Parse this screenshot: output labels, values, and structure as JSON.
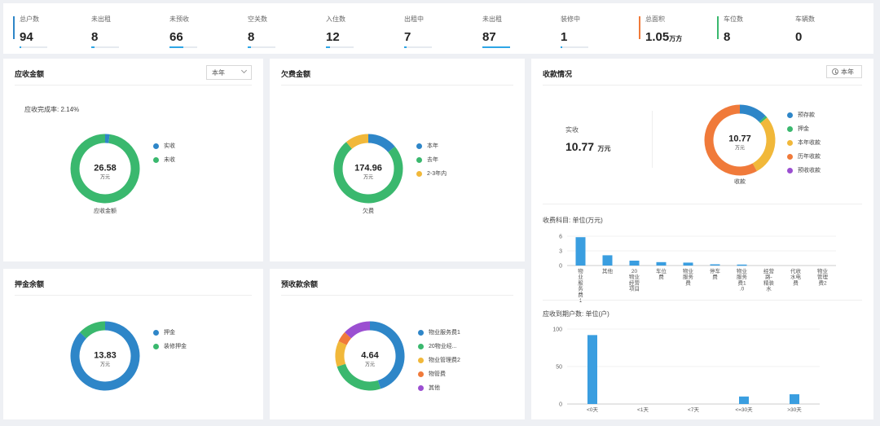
{
  "stats": [
    {
      "label": "总户数",
      "value": "94",
      "unit": "",
      "progress": 0
    },
    {
      "label": "未出租",
      "value": "8",
      "unit": "",
      "progress": 0.12
    },
    {
      "label": "未预收",
      "value": "66",
      "unit": "",
      "progress": 0.5
    },
    {
      "label": "空关数",
      "value": "8",
      "unit": "",
      "progress": 0.12
    },
    {
      "label": "入住数",
      "value": "12",
      "unit": "",
      "progress": 0.15
    },
    {
      "label": "出租中",
      "value": "7",
      "unit": "",
      "progress": 0.1
    },
    {
      "label": "未出租",
      "value": "87",
      "unit": "",
      "progress": 1.0
    },
    {
      "label": "装修中",
      "value": "1",
      "unit": "",
      "progress": 0.05
    },
    {
      "label": "总面积",
      "value": "1.05",
      "unit": "万方",
      "progress": null,
      "accent": "#f07a3a"
    },
    {
      "label": "车位数",
      "value": "8",
      "unit": "",
      "progress": null,
      "accent": "#3ab86e"
    },
    {
      "label": "车辆数",
      "value": "0",
      "unit": "",
      "progress": null
    }
  ],
  "receivable": {
    "title": "应收金额",
    "period": "本年",
    "rate_text": "应收完成率: 2.14%",
    "center_value": "26.58",
    "center_unit": "万元",
    "caption": "应收金额",
    "legend": [
      {
        "label": "实收",
        "color": "#2e86c8",
        "value": 0.57
      },
      {
        "label": "未收",
        "color": "#3ab86e",
        "value": 26.01
      }
    ]
  },
  "arrears": {
    "title": "欠费金额",
    "center_value": "174.96",
    "center_unit": "万元",
    "caption": "欠费",
    "legend": [
      {
        "label": "本年",
        "color": "#2e86c8",
        "value": 14
      },
      {
        "label": "去年",
        "color": "#3ab86e",
        "value": 75
      },
      {
        "label": "2-3年内",
        "color": "#f1b83a",
        "value": 11
      }
    ]
  },
  "deposit": {
    "title": "押金余额",
    "center_value": "13.83",
    "center_unit": "万元",
    "legend": [
      {
        "label": "押金",
        "color": "#2e86c8",
        "value": 87
      },
      {
        "label": "装修押金",
        "color": "#3ab86e",
        "value": 13
      }
    ]
  },
  "prepaid": {
    "title": "预收款余额",
    "center_value": "4.64",
    "center_unit": "万元",
    "legend": [
      {
        "label": "物业服务费1",
        "color": "#2e86c8",
        "value": 45
      },
      {
        "label": "20物业经...",
        "color": "#3ab86e",
        "value": 25
      },
      {
        "label": "物业管理费2",
        "color": "#f1b83a",
        "value": 12
      },
      {
        "label": "物管费",
        "color": "#f07a3a",
        "value": 5
      },
      {
        "label": "其他",
        "color": "#9b4fd1",
        "value": 13
      }
    ]
  },
  "collection": {
    "title": "收款情况",
    "period": "本年",
    "actual_label": "实收",
    "actual_value": "10.77",
    "actual_unit": "万元",
    "center_value": "10.77",
    "center_unit": "万元",
    "caption": "收款",
    "legend": [
      {
        "label": "预存款",
        "color": "#2e86c8",
        "value": 13
      },
      {
        "label": "押金",
        "color": "#3ab86e",
        "value": 1
      },
      {
        "label": "本年收款",
        "color": "#f1b83a",
        "value": 28
      },
      {
        "label": "历年收款",
        "color": "#f07a3a",
        "value": 58
      },
      {
        "label": "预收收款",
        "color": "#9b4fd1",
        "value": 0
      }
    ],
    "subjects_title": "收费科目: 单位(万元)",
    "aging_title": "应收到期户数: 单位(户)"
  },
  "chart_data": [
    {
      "type": "bar",
      "title": "收费科目: 单位(万元)",
      "categories": [
        "物业服务费1",
        "其他",
        "20物业经营项目",
        "车位费",
        "物业服务费",
        "停车费",
        "物业服务费1.0",
        "经营路-精装水",
        "代收水电费",
        "物业管理费2"
      ],
      "tick_labels": [
        "物\n业\n服\n务\n费\n1",
        "其他",
        "20\n物业\n经营\n项目",
        "车位\n费",
        "物业\n服务\n费",
        "停车\n费",
        "物业\n服务\n费1\n.0",
        "经营\n路-\n精装\n水",
        "代收\n水电\n费",
        "物业\n管理\n费2"
      ],
      "values": [
        5.8,
        2.1,
        1.0,
        0.7,
        0.6,
        0.25,
        0.2,
        0,
        0,
        0
      ],
      "ylim": [
        0,
        6
      ],
      "yticks": [
        "0",
        "3",
        "6"
      ]
    },
    {
      "type": "bar",
      "title": "应收到期户数: 单位(户)",
      "categories": [
        "<0天",
        "<1天",
        "<7天",
        "<=30天",
        ">30天"
      ],
      "values": [
        92,
        0,
        0,
        10,
        13
      ],
      "ylim": [
        0,
        100
      ],
      "yticks": [
        "0",
        "50",
        "100"
      ]
    }
  ]
}
